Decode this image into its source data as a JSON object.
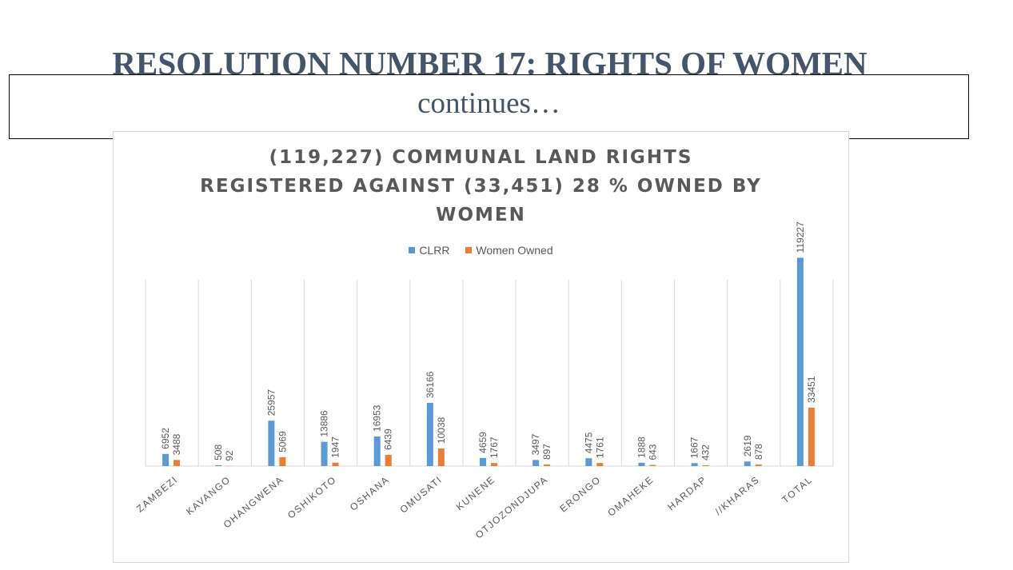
{
  "slide": {
    "title": "RESOLUTION NUMBER 17: RIGHTS OF WOMEN",
    "subtitle": "continues…"
  },
  "chart_data": {
    "type": "bar",
    "title_lines": [
      "(119,227) COMMUNAL LAND RIGHTS",
      "REGISTERED AGAINST (33,451) 28 % OWNED BY",
      "WOMEN"
    ],
    "categories": [
      "ZAMBEZI",
      "KAVANGO",
      "OHANGWENA",
      "OSHIKOTO",
      "OSHANA",
      "OMUSATI",
      "KUNENE",
      "OTJOZONDJUPA",
      "ERONGO",
      "OMAHEKE",
      "HARDAP",
      "//KHARAS",
      "TOTAL"
    ],
    "series": [
      {
        "name": "CLRR",
        "color": "#5b9bd5",
        "values": [
          6952,
          508,
          25957,
          13886,
          16953,
          36166,
          4659,
          3497,
          4475,
          1888,
          1667,
          2619,
          119227
        ]
      },
      {
        "name": "Women Owned",
        "color": "#ed7d31",
        "values": [
          3488,
          92,
          5069,
          1947,
          6439,
          10038,
          1767,
          897,
          1761,
          643,
          432,
          878,
          33451
        ]
      }
    ],
    "ylim": [
      0,
      140000
    ],
    "legend_position": "top",
    "grid": "vertical category separators"
  }
}
